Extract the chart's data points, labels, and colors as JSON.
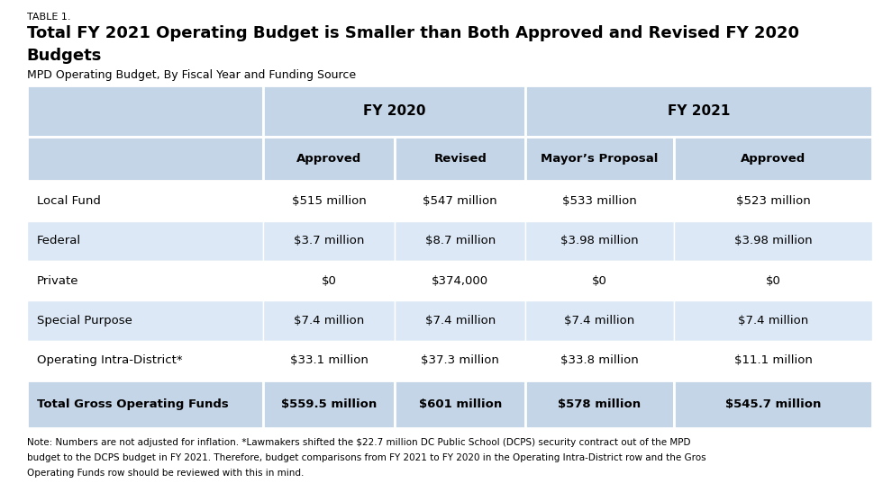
{
  "table_label": "TABLE 1.",
  "title_line1": "Total FY 2021 Operating Budget is Smaller than Both Approved and Revised FY 2020",
  "title_line2": "Budgets",
  "subtitle": "MPD Operating Budget, By Fiscal Year and Funding Source",
  "col_group1": "FY 2020",
  "col_group2": "FY 2021",
  "col_headers": [
    "Approved",
    "Revised",
    "Mayor’s Proposal",
    "Approved"
  ],
  "row_labels": [
    "Local Fund",
    "Federal",
    "Private",
    "Special Purpose",
    "Operating Intra-District*"
  ],
  "total_row_label": "Total Gross Operating Funds",
  "data": [
    [
      "$515 million",
      "$547 million",
      "$533 million",
      "$523 million"
    ],
    [
      "$3.7 million",
      "$8.7 million",
      "$3.98 million",
      "$3.98 million"
    ],
    [
      "$0",
      "$374,000",
      "$0",
      "$0"
    ],
    [
      "$7.4 million",
      "$7.4 million",
      "$7.4 million",
      "$7.4 million"
    ],
    [
      "$33.1 million",
      "$37.3 million",
      "$33.8 million",
      "$11.1 million"
    ]
  ],
  "total_row": [
    "$559.5 million",
    "$601 million",
    "$578 million",
    "$545.7 million"
  ],
  "note_lines": [
    "Note: Numbers are not adjusted for inflation. *Lawmakers shifted the $22.7 million DC Public School (DCPS) security contract out of the MPD",
    "budget to the DCPS budget in FY 2021. Therefore, budget comparisons from FY 2021 to FY 2020 in the Operating Intra-District row and the Gros",
    "Operating Funds row should be reviewed with this in mind."
  ],
  "header_bg": "#c5d5e8",
  "alt_row_bg": "#dce8f5",
  "white": "#ffffff",
  "total_row_bg": "#c5d5e8",
  "text_color": "#000000",
  "background_color": "#ffffff"
}
